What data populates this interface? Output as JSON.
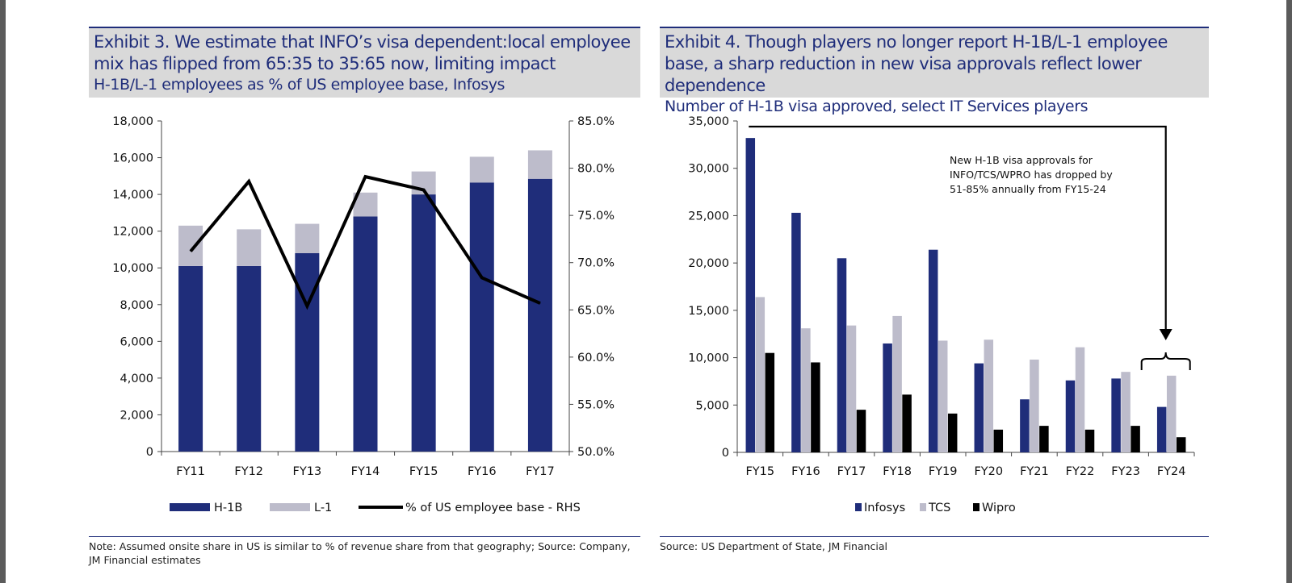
{
  "left": {
    "title": "Exhibit 3. We estimate that INFO’s visa dependent:local employee mix has flipped from 65:35 to 35:65 now, limiting impact",
    "subtitle": "H-1B/L-1 employees as % of US employee base, Infosys",
    "note": "Note: Assumed onsite share in US is similar to % of revenue share from that geography; Source: Company, JM Financial estimates"
  },
  "right": {
    "title": "Exhibit 4. Though players no longer report H-1B/L-1 employee base, a sharp reduction in new visa approvals reflect lower dependence",
    "subtitle": "Number of H-1B visa approved, select IT Services players",
    "note": "Source: US Department of State, JM Financial"
  },
  "colors": {
    "navy": "#1f2d7a",
    "grey": "#bdbccb",
    "black": "#000000",
    "titlebg": "#d9d9d9"
  },
  "chart_data": [
    {
      "type": "bar",
      "stacked": true,
      "categories": [
        "FY11",
        "FY12",
        "FY13",
        "FY14",
        "FY15",
        "FY16",
        "FY17"
      ],
      "series": [
        {
          "name": "H-1B",
          "axis": "left",
          "values": [
            10100,
            10100,
            10800,
            12800,
            14000,
            14650,
            14850
          ],
          "color": "#1f2d7a"
        },
        {
          "name": "L-1",
          "axis": "left",
          "values": [
            2200,
            2000,
            1600,
            1300,
            1250,
            1400,
            1550
          ],
          "color": "#bdbccb"
        },
        {
          "name": "% of US employee base - RHS",
          "axis": "right",
          "kind": "line",
          "values": [
            71.2,
            78.6,
            65.4,
            79.1,
            77.7,
            68.4,
            65.7
          ],
          "color": "#000000"
        }
      ],
      "ylim": [
        0,
        18000
      ],
      "yticks": [
        "18,000",
        "16,000",
        "14,000",
        "12,000",
        "10,000",
        "8,000",
        "6,000",
        "4,000",
        "2,000",
        "0"
      ],
      "y2lim": [
        50,
        85
      ],
      "y2ticks": [
        "85.0%",
        "80.0%",
        "75.0%",
        "70.0%",
        "65.0%",
        "60.0%",
        "55.0%",
        "50.0%"
      ],
      "legend": "bottom"
    },
    {
      "type": "bar",
      "categories": [
        "FY15",
        "FY16",
        "FY17",
        "FY18",
        "FY19",
        "FY20",
        "FY21",
        "FY22",
        "FY23",
        "FY24"
      ],
      "series": [
        {
          "name": "Infosys",
          "values": [
            33200,
            25300,
            20500,
            11500,
            21400,
            9400,
            5600,
            7600,
            7800,
            4800
          ],
          "color": "#1f2d7a"
        },
        {
          "name": "TCS",
          "values": [
            16400,
            13100,
            13400,
            14400,
            11800,
            11900,
            9800,
            11100,
            8500,
            8100
          ],
          "color": "#bdbccb"
        },
        {
          "name": "Wipro",
          "values": [
            10500,
            9500,
            4500,
            6100,
            4100,
            2400,
            2800,
            2400,
            2800,
            1600
          ],
          "color": "#000000"
        }
      ],
      "ylim": [
        0,
        35000
      ],
      "yticks": [
        "35,000",
        "30,000",
        "25,000",
        "20,000",
        "15,000",
        "10,000",
        "5,000",
        "0"
      ],
      "annotation": "New H-1B visa approvals for INFO/TCS/WPRO has dropped by 51-85% annually from FY15-24",
      "annotation_lines": [
        "New H-1B visa approvals for",
        "INFO/TCS/WPRO has dropped by",
        "51-85% annually from FY15-24"
      ],
      "legend": "bottom"
    }
  ]
}
